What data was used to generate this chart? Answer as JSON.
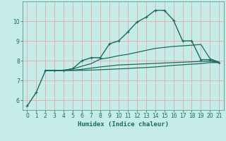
{
  "xlabel": "Humidex (Indice chaleur)",
  "bg_color": "#c5ece6",
  "grid_color": "#e8a8a8",
  "line_color": "#1a6b60",
  "xlim": [
    -0.5,
    21.5
  ],
  "ylim": [
    5.5,
    11.0
  ],
  "yticks": [
    6,
    7,
    8,
    9,
    10
  ],
  "xticks": [
    0,
    1,
    2,
    3,
    4,
    5,
    6,
    7,
    8,
    9,
    10,
    11,
    12,
    13,
    14,
    15,
    16,
    17,
    18,
    19,
    20,
    21
  ],
  "series": [
    {
      "x": [
        0,
        1,
        2,
        3,
        4,
        5,
        6,
        7,
        8,
        9,
        10,
        11,
        12,
        13,
        14,
        15,
        16,
        17,
        18,
        19,
        20,
        21
      ],
      "y": [
        5.7,
        6.4,
        7.5,
        7.5,
        7.5,
        7.6,
        8.0,
        8.15,
        8.15,
        8.85,
        9.0,
        9.45,
        9.95,
        10.2,
        10.55,
        10.55,
        10.05,
        9.0,
        9.0,
        8.05,
        8.05,
        7.9
      ],
      "marker": true,
      "lw": 1.0
    },
    {
      "x": [
        2,
        3,
        4,
        5,
        6,
        7,
        8,
        9,
        10,
        11,
        12,
        13,
        14,
        15,
        16,
        17,
        18,
        19,
        20,
        21
      ],
      "y": [
        7.5,
        7.5,
        7.52,
        7.58,
        7.72,
        7.85,
        8.08,
        8.15,
        8.25,
        8.32,
        8.42,
        8.52,
        8.62,
        8.67,
        8.72,
        8.75,
        8.78,
        8.82,
        8.1,
        7.92
      ],
      "marker": false,
      "lw": 0.9
    },
    {
      "x": [
        2,
        3,
        4,
        5,
        6,
        7,
        8,
        9,
        10,
        11,
        12,
        13,
        14,
        15,
        16,
        17,
        18,
        19,
        20,
        21
      ],
      "y": [
        7.5,
        7.5,
        7.5,
        7.52,
        7.56,
        7.62,
        7.68,
        7.73,
        7.78,
        7.8,
        7.82,
        7.84,
        7.86,
        7.88,
        7.9,
        7.92,
        7.94,
        7.96,
        7.97,
        7.9
      ],
      "marker": false,
      "lw": 0.9
    },
    {
      "x": [
        2,
        3,
        4,
        5,
        6,
        7,
        8,
        9,
        10,
        11,
        12,
        13,
        14,
        15,
        16,
        17,
        18,
        19,
        20,
        21
      ],
      "y": [
        7.5,
        7.5,
        7.5,
        7.5,
        7.51,
        7.52,
        7.54,
        7.56,
        7.58,
        7.6,
        7.63,
        7.65,
        7.68,
        7.72,
        7.76,
        7.79,
        7.82,
        7.85,
        7.9,
        7.9
      ],
      "marker": false,
      "lw": 0.9
    }
  ]
}
